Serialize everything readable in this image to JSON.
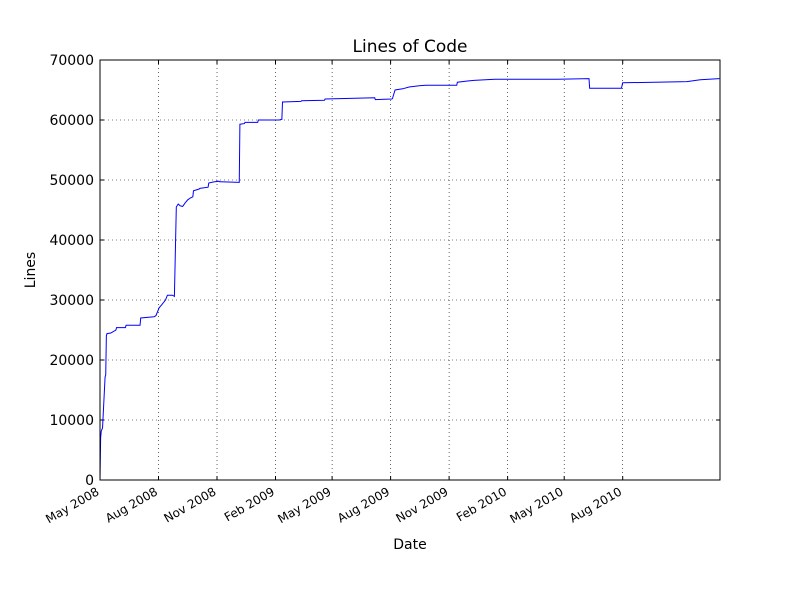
{
  "chart_data": {
    "type": "line",
    "title": "Lines of Code",
    "xlabel": "Date",
    "ylabel": "Lines",
    "grid": true,
    "line_color": "#0000ff",
    "ylim": [
      0,
      70000
    ],
    "xlim": [
      "2008-05-01",
      "2011-01-01"
    ],
    "y_ticks": [
      {
        "value": 0,
        "label": "0"
      },
      {
        "value": 10000,
        "label": "10000"
      },
      {
        "value": 20000,
        "label": "20000"
      },
      {
        "value": 30000,
        "label": "30000"
      },
      {
        "value": 40000,
        "label": "40000"
      },
      {
        "value": 50000,
        "label": "50000"
      },
      {
        "value": 60000,
        "label": "60000"
      },
      {
        "value": 70000,
        "label": "70000"
      }
    ],
    "x_ticks": [
      {
        "date": "2008-05-01",
        "label": "May 2008"
      },
      {
        "date": "2008-08-01",
        "label": "Aug 2008"
      },
      {
        "date": "2008-11-01",
        "label": "Nov 2008"
      },
      {
        "date": "2009-02-01",
        "label": "Feb 2009"
      },
      {
        "date": "2009-05-01",
        "label": "May 2009"
      },
      {
        "date": "2009-08-01",
        "label": "Aug 2009"
      },
      {
        "date": "2009-11-01",
        "label": "Nov 2009"
      },
      {
        "date": "2010-02-01",
        "label": "Feb 2010"
      },
      {
        "date": "2010-05-01",
        "label": "May 2010"
      },
      {
        "date": "2010-08-01",
        "label": "Aug 2010"
      }
    ],
    "series": [
      {
        "x": [
          "2008-05-01",
          "2008-05-02",
          "2008-05-03",
          "2008-05-04",
          "2008-05-05",
          "2008-05-09",
          "2008-05-10",
          "2008-05-11",
          "2008-05-12",
          "2008-05-18",
          "2008-05-26",
          "2008-05-27",
          "2008-06-10",
          "2008-06-11",
          "2008-07-03",
          "2008-07-04",
          "2008-07-25",
          "2008-07-28",
          "2008-08-02",
          "2008-08-06",
          "2008-08-12",
          "2008-08-15",
          "2008-08-23",
          "2008-08-26",
          "2008-08-29",
          "2008-09-01",
          "2008-09-04",
          "2008-09-08",
          "2008-09-12",
          "2008-09-16",
          "2008-09-20",
          "2008-09-24",
          "2008-09-25",
          "2008-10-04",
          "2008-10-05",
          "2008-10-18",
          "2008-10-19",
          "2008-10-28",
          "2008-10-29",
          "2008-11-04",
          "2008-11-05",
          "2008-11-06",
          "2008-12-06",
          "2008-12-07",
          "2008-12-14",
          "2008-12-15",
          "2009-01-04",
          "2009-01-05",
          "2009-02-07",
          "2009-02-10",
          "2009-02-11",
          "2009-02-12",
          "2009-03-13",
          "2009-03-14",
          "2009-04-19",
          "2009-04-20",
          "2009-07-07",
          "2009-07-08",
          "2009-08-03",
          "2009-08-04",
          "2009-08-08",
          "2009-08-20",
          "2009-08-30",
          "2009-09-15",
          "2009-09-25",
          "2009-10-22",
          "2009-11-13",
          "2009-11-14",
          "2009-11-30",
          "2009-12-10",
          "2010-01-12",
          "2010-03-15",
          "2010-04-20",
          "2010-06-09",
          "2010-06-10",
          "2010-07-29",
          "2010-07-30",
          "2010-08-01",
          "2010-11-10",
          "2010-12-01",
          "2010-12-31"
        ],
        "y": [
          0,
          7000,
          8200,
          8400,
          8700,
          17200,
          17500,
          24000,
          24400,
          24500,
          25000,
          25400,
          25400,
          25800,
          25800,
          27000,
          27200,
          27400,
          28700,
          29200,
          30000,
          30800,
          30800,
          30600,
          45500,
          46000,
          45700,
          45600,
          46200,
          46700,
          47000,
          47200,
          48200,
          48500,
          48600,
          48800,
          49500,
          49700,
          49700,
          49800,
          49700,
          49700,
          49600,
          59300,
          59400,
          59600,
          59600,
          60000,
          60000,
          60100,
          60100,
          63000,
          63100,
          63200,
          63300,
          63500,
          63700,
          63400,
          63500,
          63600,
          65000,
          65200,
          65500,
          65700,
          65800,
          65800,
          65800,
          66300,
          66500,
          66600,
          66800,
          66800,
          66800,
          66900,
          65300,
          65300,
          65300,
          66200,
          66400,
          66700,
          66900
        ]
      }
    ]
  }
}
